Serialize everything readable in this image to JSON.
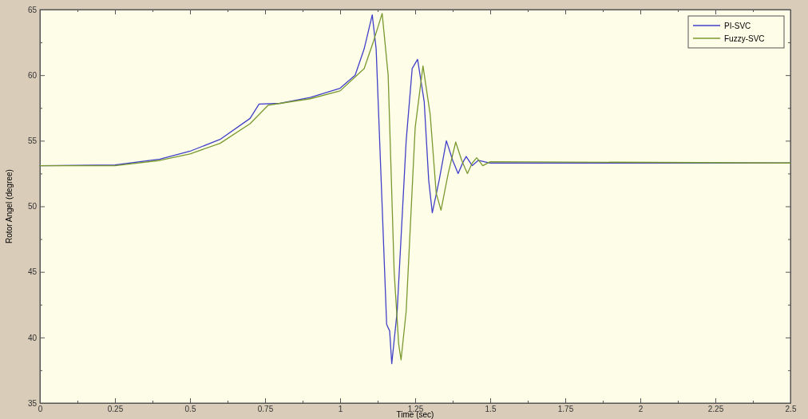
{
  "chart_data": {
    "type": "line",
    "xlabel": "Time (sec)",
    "ylabel": "Rotor Angel (degree)",
    "xlim": [
      0,
      2.5
    ],
    "xticks": [
      0,
      {
        "value": 0.125,
        "label": null
      },
      0.25,
      {
        "value": 0.375,
        "label": null
      },
      0.5,
      {
        "value": 0.625,
        "label": null
      },
      0.75,
      {
        "value": 0.875,
        "label": null
      },
      1,
      {
        "value": 1.125,
        "label": null
      },
      1.25,
      {
        "value": 1.375,
        "label": null
      },
      1.5,
      {
        "value": 1.625,
        "label": null
      },
      1.75,
      {
        "value": 1.875,
        "label": null
      },
      2,
      {
        "value": 2.125,
        "label": null
      },
      2.25,
      {
        "value": 2.375,
        "label": null
      },
      2.5
    ],
    "ylim": [
      35,
      65
    ],
    "yticks": [
      35,
      {
        "value": 37.5,
        "label": null
      },
      40,
      {
        "value": 42.5,
        "label": null
      },
      45,
      {
        "value": 47.5,
        "label": null
      },
      50,
      {
        "value": 52.5,
        "label": null
      },
      55,
      {
        "value": 57.5,
        "label": null
      },
      60,
      {
        "value": 62.5,
        "label": null
      },
      65
    ],
    "grid": false,
    "legend": "top right",
    "marker": "none",
    "line_style": "solid",
    "series": [
      {
        "name": "PI-SVC",
        "color": "#4040c8",
        "x": [
          0,
          0.25,
          0.4,
          0.5,
          0.6,
          0.7,
          0.73,
          0.8,
          0.9,
          1.0,
          1.05,
          1.08,
          1.107,
          1.12,
          1.14,
          1.155,
          1.165,
          1.172,
          1.19,
          1.22,
          1.24,
          1.258,
          1.28,
          1.295,
          1.307,
          1.33,
          1.354,
          1.375,
          1.393,
          1.41,
          1.42,
          1.44,
          1.46,
          1.5,
          2.5
        ],
        "values": [
          53.1,
          53.15,
          53.6,
          54.2,
          55.1,
          56.7,
          57.8,
          57.85,
          58.3,
          59.0,
          60.0,
          62.0,
          64.6,
          62.0,
          50.0,
          41.0,
          40.5,
          38.0,
          42.0,
          55.0,
          60.5,
          61.2,
          58.0,
          52.0,
          49.5,
          52.0,
          55.0,
          53.5,
          52.5,
          53.4,
          53.8,
          53.1,
          53.5,
          53.3,
          53.3
        ]
      },
      {
        "name": "Fuzzy-SVC",
        "color": "#7a9a30",
        "x": [
          0,
          0.25,
          0.4,
          0.5,
          0.6,
          0.7,
          0.76,
          0.8,
          0.9,
          1.0,
          1.08,
          1.11,
          1.14,
          1.16,
          1.18,
          1.195,
          1.203,
          1.22,
          1.25,
          1.276,
          1.3,
          1.32,
          1.336,
          1.36,
          1.385,
          1.405,
          1.424,
          1.44,
          1.455,
          1.475,
          1.5,
          2.5
        ],
        "values": [
          53.1,
          53.1,
          53.5,
          54.0,
          54.8,
          56.3,
          57.7,
          57.85,
          58.2,
          58.8,
          60.5,
          62.5,
          64.7,
          60.0,
          45.0,
          39.5,
          38.3,
          42.0,
          56.0,
          60.7,
          57.0,
          51.0,
          49.7,
          52.5,
          54.9,
          53.5,
          52.5,
          53.3,
          53.7,
          53.1,
          53.4,
          53.3
        ]
      }
    ]
  }
}
